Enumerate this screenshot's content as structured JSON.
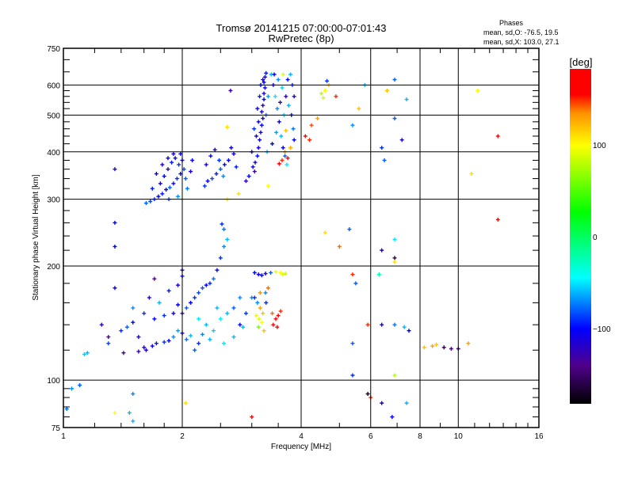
{
  "chart_data": {
    "type": "scatter",
    "title": "Tromsø 20141215 07:00:00-07:01:43",
    "subtitle": "RwPretec (8p)",
    "stats": {
      "heading": "Phases",
      "o_mode": "mean, sd,O: -76.5, 19.5",
      "x_mode": "mean, sd,X: 103.0, 27.1"
    },
    "xlabel": "Frequency [MHz]",
    "ylabel": "Stationary phase Virtual Height [km]",
    "xscale": "log",
    "yscale": "log",
    "xlim": [
      1,
      16
    ],
    "ylim": [
      75,
      750
    ],
    "xticks": [
      1,
      2,
      4,
      6,
      8,
      10,
      16
    ],
    "xtick_labels": [
      "1",
      "2",
      "4",
      "6",
      "8",
      "10",
      "16"
    ],
    "yticks": [
      75,
      100,
      200,
      300,
      400,
      500,
      600,
      750
    ],
    "ytick_labels": [
      "75",
      "100",
      "200",
      "300",
      "400",
      "500",
      "600",
      "750"
    ],
    "x_gridlines": [
      2,
      4,
      6,
      8,
      10
    ],
    "y_gridlines": [
      100,
      200,
      300,
      400,
      500,
      600
    ],
    "grid": true,
    "colorbar": {
      "label": "[deg]",
      "range": [
        -182,
        183
      ],
      "ticks": [
        100,
        0,
        -100
      ],
      "tick_labels": [
        "100",
        "0",
        "−100"
      ],
      "stops": [
        {
          "value": -182,
          "color": "#000000"
        },
        {
          "value": -140,
          "color": "#50008c"
        },
        {
          "value": -100,
          "color": "#0000ff"
        },
        {
          "value": -45,
          "color": "#00ffff"
        },
        {
          "value": 27,
          "color": "#00ff00"
        },
        {
          "value": 100,
          "color": "#ffff00"
        },
        {
          "value": 135,
          "color": "#ff9000"
        },
        {
          "value": 155,
          "color": "#ff0000"
        },
        {
          "value": 183,
          "color": "#ff0000"
        }
      ]
    },
    "points_format": [
      "frequency_MHz",
      "virtual_height_km",
      "phase_deg"
    ],
    "points": [
      [
        1.62,
        293,
        -80
      ],
      [
        1.66,
        296,
        -85
      ],
      [
        1.7,
        300,
        -90
      ],
      [
        1.74,
        305,
        -100
      ],
      [
        1.78,
        310,
        -95
      ],
      [
        1.82,
        318,
        -105
      ],
      [
        1.86,
        322,
        -80
      ],
      [
        1.9,
        330,
        -110
      ],
      [
        1.94,
        340,
        -90
      ],
      [
        1.98,
        350,
        -100
      ],
      [
        2.02,
        360,
        -85
      ],
      [
        1.76,
        330,
        -110
      ],
      [
        1.8,
        345,
        -100
      ],
      [
        1.84,
        360,
        -115
      ],
      [
        1.88,
        375,
        -95
      ],
      [
        1.92,
        385,
        -105
      ],
      [
        1.96,
        370,
        -90
      ],
      [
        2.0,
        380,
        -110
      ],
      [
        1.72,
        350,
        -100
      ],
      [
        1.78,
        370,
        -115
      ],
      [
        1.84,
        385,
        -100
      ],
      [
        1.9,
        395,
        -110
      ],
      [
        1.98,
        395,
        -100
      ],
      [
        2.04,
        340,
        -80
      ],
      [
        2.06,
        320,
        -75
      ],
      [
        1.95,
        305,
        -70
      ],
      [
        1.85,
        300,
        -85
      ],
      [
        1.68,
        320,
        -95
      ],
      [
        2.1,
        355,
        -110
      ],
      [
        2.12,
        380,
        -105
      ],
      [
        2.28,
        325,
        -90
      ],
      [
        2.32,
        335,
        -100
      ],
      [
        2.38,
        340,
        -85
      ],
      [
        2.44,
        350,
        -95
      ],
      [
        2.5,
        360,
        -80
      ],
      [
        2.56,
        370,
        -100
      ],
      [
        2.62,
        380,
        -105
      ],
      [
        2.7,
        395,
        -110
      ],
      [
        2.3,
        370,
        -110
      ],
      [
        2.36,
        390,
        -100
      ],
      [
        2.42,
        405,
        -115
      ],
      [
        2.48,
        380,
        -90
      ],
      [
        2.54,
        345,
        -70
      ],
      [
        2.66,
        410,
        -105
      ],
      [
        2.74,
        365,
        -95
      ],
      [
        3.02,
        365,
        -105
      ],
      [
        3.06,
        375,
        -110
      ],
      [
        3.1,
        390,
        -100
      ],
      [
        3.12,
        410,
        -110
      ],
      [
        3.14,
        430,
        -105
      ],
      [
        3.16,
        450,
        -115
      ],
      [
        3.18,
        470,
        -100
      ],
      [
        3.2,
        490,
        -110
      ],
      [
        3.18,
        510,
        -105
      ],
      [
        3.2,
        530,
        -115
      ],
      [
        3.22,
        550,
        -100
      ],
      [
        3.22,
        570,
        -110
      ],
      [
        3.24,
        590,
        -105
      ],
      [
        3.22,
        610,
        -100
      ],
      [
        3.24,
        630,
        -110
      ],
      [
        3.26,
        645,
        -95
      ],
      [
        3.16,
        600,
        -100
      ],
      [
        3.2,
        620,
        -115
      ],
      [
        3.08,
        440,
        -110
      ],
      [
        3.12,
        480,
        -100
      ],
      [
        3.1,
        520,
        -105
      ],
      [
        3.14,
        560,
        -95
      ],
      [
        2.95,
        345,
        -100
      ],
      [
        2.9,
        335,
        -120
      ],
      [
        3.0,
        400,
        -110
      ],
      [
        3.04,
        460,
        -90
      ],
      [
        3.28,
        400,
        -60
      ],
      [
        3.26,
        500,
        -75
      ],
      [
        3.3,
        560,
        -65
      ],
      [
        3.05,
        355,
        -130
      ],
      [
        3.36,
        640,
        -60
      ],
      [
        3.4,
        600,
        -110
      ],
      [
        3.44,
        560,
        -50
      ],
      [
        3.48,
        520,
        -70
      ],
      [
        3.52,
        480,
        -100
      ],
      [
        3.56,
        440,
        -60
      ],
      [
        3.6,
        410,
        -110
      ],
      [
        3.64,
        390,
        -80
      ],
      [
        3.68,
        370,
        -50
      ],
      [
        3.42,
        640,
        -100
      ],
      [
        3.5,
        620,
        -70
      ],
      [
        3.58,
        590,
        -55
      ],
      [
        3.66,
        560,
        -120
      ],
      [
        3.72,
        530,
        -60
      ],
      [
        3.78,
        500,
        -100
      ],
      [
        3.82,
        460,
        -75
      ],
      [
        3.7,
        620,
        -100
      ],
      [
        3.76,
        640,
        -60
      ],
      [
        3.54,
        540,
        -130
      ],
      [
        3.62,
        500,
        -55
      ],
      [
        3.8,
        600,
        -90
      ],
      [
        3.84,
        560,
        -115
      ],
      [
        3.46,
        450,
        -65
      ],
      [
        3.38,
        420,
        -105
      ],
      [
        3.58,
        380,
        150
      ],
      [
        3.64,
        400,
        130
      ],
      [
        3.7,
        385,
        160
      ],
      [
        3.52,
        372,
        170
      ],
      [
        3.76,
        410,
        125
      ],
      [
        3.66,
        455,
        120
      ],
      [
        3.84,
        430,
        -100
      ],
      [
        3.6,
        640,
        90
      ],
      [
        4.5,
        570,
        80
      ],
      [
        4.55,
        555,
        85
      ],
      [
        4.6,
        580,
        95
      ],
      [
        4.7,
        600,
        120
      ],
      [
        4.65,
        615,
        -90
      ],
      [
        4.4,
        490,
        130
      ],
      [
        4.25,
        470,
        145
      ],
      [
        4.2,
        430,
        150
      ],
      [
        4.1,
        440,
        160
      ],
      [
        4.9,
        560,
        150
      ],
      [
        5.6,
        520,
        120
      ],
      [
        5.8,
        600,
        -60
      ],
      [
        5.4,
        470,
        -70
      ],
      [
        6.4,
        410,
        -90
      ],
      [
        6.5,
        380,
        -80
      ],
      [
        6.9,
        620,
        -80
      ],
      [
        6.9,
        490,
        -80
      ],
      [
        7.4,
        550,
        -60
      ],
      [
        7.2,
        430,
        -110
      ],
      [
        6.6,
        580,
        120
      ],
      [
        10.8,
        350,
        110
      ],
      [
        11.2,
        580,
        95
      ],
      [
        12.6,
        440,
        160
      ],
      [
        12.6,
        265,
        160
      ],
      [
        4.6,
        245,
        110
      ],
      [
        5.0,
        225,
        140
      ],
      [
        5.3,
        250,
        -80
      ],
      [
        6.4,
        220,
        -120
      ],
      [
        6.9,
        210,
        -160
      ],
      [
        6.9,
        205,
        110
      ],
      [
        6.9,
        235,
        -50
      ],
      [
        6.3,
        190,
        -20
      ],
      [
        5.4,
        190,
        150
      ],
      [
        5.5,
        180,
        -80
      ],
      [
        5.9,
        140,
        150
      ],
      [
        6.4,
        140,
        -110
      ],
      [
        6.9,
        140,
        -75
      ],
      [
        7.3,
        138,
        -60
      ],
      [
        7.5,
        135,
        -100
      ],
      [
        8.2,
        122,
        120
      ],
      [
        8.6,
        123,
        130
      ],
      [
        8.8,
        124,
        120
      ],
      [
        9.2,
        122,
        -160
      ],
      [
        9.6,
        121,
        -140
      ],
      [
        10.0,
        121,
        -150
      ],
      [
        10.6,
        125,
        130
      ],
      [
        5.4,
        125,
        -80
      ],
      [
        5.4,
        103,
        -90
      ],
      [
        6.9,
        103,
        80
      ],
      [
        5.9,
        92,
        -170
      ],
      [
        6.0,
        90,
        150
      ],
      [
        6.4,
        87,
        -110
      ],
      [
        6.8,
        80,
        -100
      ],
      [
        7.4,
        87,
        -60
      ],
      [
        3.0,
        80,
        160
      ],
      [
        1.5,
        78,
        -60
      ],
      [
        1.47,
        82,
        -60
      ],
      [
        1.35,
        82,
        100
      ],
      [
        1.5,
        92,
        -70
      ],
      [
        1.1,
        97,
        -80
      ],
      [
        1.05,
        95,
        -70
      ],
      [
        1.02,
        84,
        -80
      ],
      [
        2.04,
        87,
        110
      ],
      [
        1.35,
        260,
        -100
      ],
      [
        1.35,
        225,
        -100
      ],
      [
        1.35,
        360,
        -120
      ],
      [
        2.65,
        580,
        -130
      ],
      [
        2.6,
        465,
        110
      ],
      [
        2.6,
        300,
        110
      ],
      [
        2.78,
        310,
        110
      ],
      [
        3.3,
        325,
        100
      ],
      [
        1.15,
        118,
        -60
      ],
      [
        1.13,
        117,
        -55
      ],
      [
        1.3,
        125,
        -85
      ],
      [
        1.4,
        135,
        -90
      ],
      [
        1.45,
        138,
        -80
      ],
      [
        1.5,
        142,
        -100
      ],
      [
        1.55,
        130,
        -110
      ],
      [
        1.6,
        122,
        -120
      ],
      [
        1.55,
        119,
        -130
      ],
      [
        1.62,
        120,
        -110
      ],
      [
        1.68,
        123,
        -100
      ],
      [
        1.72,
        125,
        -95
      ],
      [
        1.8,
        126,
        -90
      ],
      [
        1.85,
        127,
        -100
      ],
      [
        1.9,
        130,
        -70
      ],
      [
        1.95,
        135,
        -65
      ],
      [
        2.0,
        133,
        -110
      ],
      [
        2.05,
        128,
        -75
      ],
      [
        2.1,
        131,
        -60
      ],
      [
        1.7,
        145,
        -100
      ],
      [
        1.8,
        148,
        -90
      ],
      [
        1.9,
        150,
        -110
      ],
      [
        1.95,
        158,
        -100
      ],
      [
        2.0,
        150,
        -120
      ],
      [
        2.05,
        155,
        -80
      ],
      [
        2.1,
        160,
        -100
      ],
      [
        2.15,
        165,
        -90
      ],
      [
        2.2,
        170,
        -85
      ],
      [
        2.25,
        175,
        -80
      ],
      [
        2.3,
        178,
        -100
      ],
      [
        2.35,
        180,
        -90
      ],
      [
        2.4,
        185,
        -75
      ],
      [
        2.45,
        195,
        -100
      ],
      [
        2.5,
        210,
        -90
      ],
      [
        2.55,
        225,
        -70
      ],
      [
        2.6,
        235,
        -60
      ],
      [
        2.55,
        250,
        -75
      ],
      [
        2.52,
        258,
        -90
      ],
      [
        1.75,
        160,
        -60
      ],
      [
        1.85,
        172,
        -95
      ],
      [
        1.95,
        178,
        -110
      ],
      [
        2.0,
        188,
        -105
      ],
      [
        1.6,
        150,
        -90
      ],
      [
        1.5,
        155,
        -70
      ],
      [
        1.65,
        165,
        -120
      ],
      [
        2.2,
        145,
        -50
      ],
      [
        2.3,
        140,
        -60
      ],
      [
        2.4,
        135,
        -55
      ],
      [
        2.5,
        145,
        -50
      ],
      [
        2.6,
        150,
        -60
      ],
      [
        2.7,
        155,
        -80
      ],
      [
        2.8,
        165,
        -70
      ],
      [
        2.8,
        140,
        -100
      ],
      [
        2.7,
        130,
        -60
      ],
      [
        2.55,
        125,
        -50
      ],
      [
        2.35,
        128,
        -60
      ],
      [
        2.2,
        125,
        -90
      ],
      [
        2.9,
        150,
        -90
      ],
      [
        2.85,
        138,
        -60
      ],
      [
        1.35,
        175,
        -110
      ],
      [
        1.7,
        185,
        -140
      ],
      [
        2.0,
        195,
        -120
      ],
      [
        3.0,
        165,
        -70
      ],
      [
        1.25,
        140,
        -120
      ],
      [
        1.3,
        130,
        -140
      ],
      [
        1.42,
        118,
        -130
      ],
      [
        2.15,
        120,
        -80
      ],
      [
        2.25,
        132,
        -70
      ],
      [
        2.45,
        155,
        -60
      ],
      [
        3.05,
        192,
        -100
      ],
      [
        3.12,
        190,
        -110
      ],
      [
        3.18,
        189,
        -100
      ],
      [
        3.25,
        191,
        -105
      ],
      [
        3.35,
        192,
        -80
      ],
      [
        3.45,
        193,
        95
      ],
      [
        3.55,
        192,
        100
      ],
      [
        3.6,
        190,
        90
      ],
      [
        3.65,
        191,
        85
      ],
      [
        3.05,
        165,
        -90
      ],
      [
        3.1,
        160,
        -70
      ],
      [
        3.15,
        155,
        130
      ],
      [
        3.2,
        150,
        120
      ],
      [
        3.08,
        148,
        105
      ],
      [
        3.13,
        145,
        90
      ],
      [
        3.18,
        142,
        100
      ],
      [
        3.12,
        138,
        60
      ],
      [
        3.22,
        135,
        120
      ],
      [
        3.26,
        160,
        -90
      ],
      [
        3.25,
        170,
        -70
      ],
      [
        3.38,
        150,
        140
      ],
      [
        3.45,
        145,
        160
      ],
      [
        3.5,
        148,
        165
      ],
      [
        3.55,
        152,
        150
      ],
      [
        3.4,
        140,
        155
      ],
      [
        3.48,
        138,
        170
      ],
      [
        3.15,
        170,
        135
      ],
      [
        3.3,
        175,
        140
      ]
    ]
  }
}
